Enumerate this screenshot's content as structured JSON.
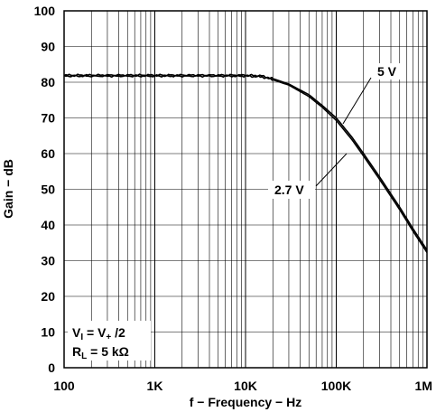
{
  "chart_data": {
    "type": "line",
    "title": "",
    "xlabel": "f − Frequency − Hz",
    "ylabel": "Gain − dB",
    "xscale": "log",
    "xlim": [
      100,
      1000000
    ],
    "ylim": [
      0,
      100
    ],
    "grid": true,
    "x_tick_labels": [
      "100",
      "1K",
      "10K",
      "100K",
      "1M"
    ],
    "y_tick_labels": [
      "0",
      "10",
      "20",
      "30",
      "40",
      "50",
      "60",
      "70",
      "80",
      "90",
      "100"
    ],
    "x": [
      100,
      200,
      500,
      1000,
      2000,
      5000,
      10000,
      15000,
      20000,
      30000,
      50000,
      70000,
      100000,
      150000,
      200000,
      300000,
      500000,
      700000,
      1000000
    ],
    "series": [
      {
        "name": "5 V",
        "values": [
          82,
          82,
          82,
          82,
          82,
          82,
          82,
          81.8,
          81,
          79.5,
          76.5,
          73.5,
          70,
          64.5,
          60,
          53.5,
          45,
          39,
          33
        ]
      },
      {
        "name": "2.7 V",
        "values": [
          81.7,
          81.7,
          81.7,
          81.7,
          81.7,
          81.7,
          81.7,
          81.5,
          80.7,
          79.2,
          76,
          73,
          69.3,
          63.8,
          59.3,
          52.8,
          44.3,
          38.3,
          32.3
        ]
      }
    ],
    "annotations": [
      {
        "text": "5 V",
        "series": "5 V"
      },
      {
        "text": "2.7 V",
        "series": "2.7 V"
      }
    ],
    "conditions": [
      {
        "main": "V",
        "sub": "I",
        "rest": " = V",
        "sub2": "+",
        "tail": " /2"
      },
      {
        "main": "R",
        "sub": "L",
        "rest": " = 5 kΩ"
      }
    ]
  }
}
